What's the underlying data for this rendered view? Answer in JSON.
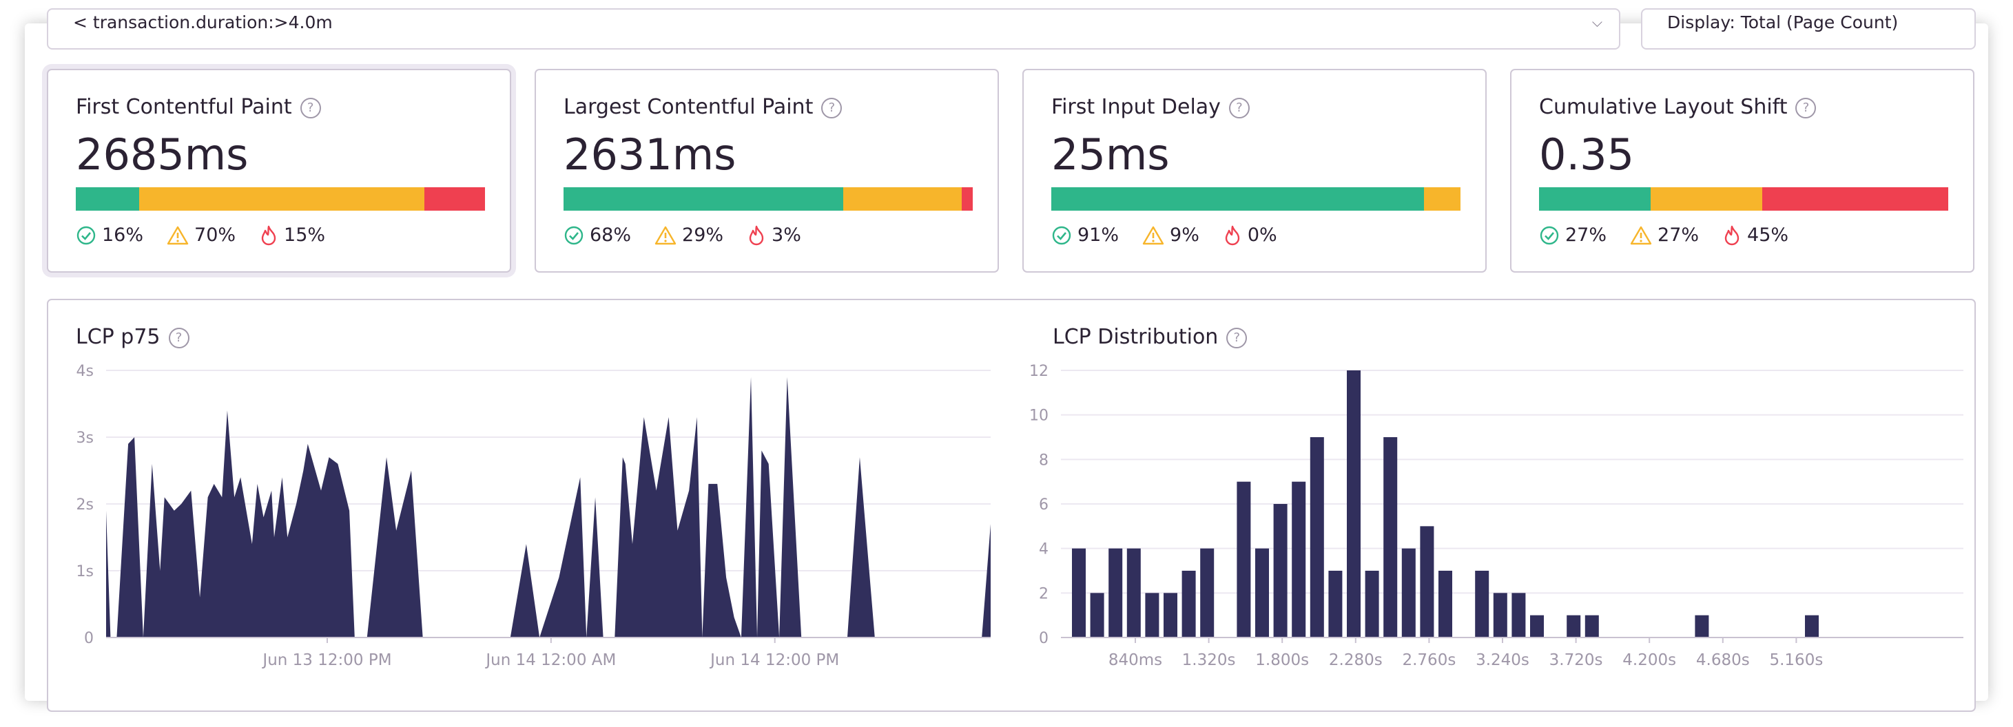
{
  "search": {
    "query": "< transaction.duration:>4.0m",
    "right_label": "Display: Total (Page Count)"
  },
  "colors": {
    "good": "#2eb68a",
    "meh": "#f7b52b",
    "poor": "#ef4050",
    "series": "#312f5c",
    "grid": "#ece8f1",
    "axis_text": "#9f97a8"
  },
  "cards": [
    {
      "title": "First Contentful Paint",
      "value": "2685ms",
      "good": "16%",
      "meh": "70%",
      "poor": "15%",
      "good_frac": 0.155,
      "meh_frac": 0.697,
      "poor_frac": 0.148,
      "selected": true
    },
    {
      "title": "Largest Contentful Paint",
      "value": "2631ms",
      "good": "68%",
      "meh": "29%",
      "poor": "3%",
      "good_frac": 0.683,
      "meh_frac": 0.29,
      "poor_frac": 0.027,
      "selected": false
    },
    {
      "title": "First Input Delay",
      "value": "25ms",
      "good": "91%",
      "meh": "9%",
      "poor": "0%",
      "good_frac": 0.91,
      "meh_frac": 0.09,
      "poor_frac": 0.0,
      "selected": false
    },
    {
      "title": "Cumulative Layout Shift",
      "value": "0.35",
      "good": "27%",
      "meh": "27%",
      "poor": "45%",
      "good_frac": 0.273,
      "meh_frac": 0.273,
      "poor_frac": 0.454,
      "selected": false
    }
  ],
  "chart_data": [
    {
      "type": "area",
      "title": "LCP p75",
      "ytick_labels": [
        "0",
        "1s",
        "2s",
        "3s",
        "4s"
      ],
      "ylim": [
        0,
        4
      ],
      "xlim": [
        0,
        1
      ],
      "xtick_labels": [
        "Jun 13 12:00 PM",
        "Jun 14 12:00 AM",
        "Jun 14 12:00 PM"
      ],
      "xtick_positions": [
        0.25,
        0.503,
        0.756
      ],
      "x": [
        0,
        0.005,
        0.012,
        0.025,
        0.032,
        0.042,
        0.052,
        0.061,
        0.066,
        0.077,
        0.085,
        0.096,
        0.106,
        0.115,
        0.122,
        0.131,
        0.137,
        0.145,
        0.152,
        0.165,
        0.171,
        0.178,
        0.187,
        0.19,
        0.199,
        0.205,
        0.215,
        0.223,
        0.228,
        0.243,
        0.252,
        0.262,
        0.275,
        0.281,
        0.295,
        0.317,
        0.328,
        0.345,
        0.358,
        0.375,
        0.393,
        0.404,
        0.425,
        0.44,
        0.457,
        0.475,
        0.49,
        0.512,
        0.536,
        0.543,
        0.553,
        0.562,
        0.575,
        0.584,
        0.587,
        0.595,
        0.608,
        0.622,
        0.636,
        0.646,
        0.659,
        0.668,
        0.674,
        0.681,
        0.691,
        0.701,
        0.71,
        0.718,
        0.729,
        0.736,
        0.741,
        0.749,
        0.761,
        0.77,
        0.786,
        0.799,
        0.813,
        0.823,
        0.838,
        0.852,
        0.869,
        0.884,
        0.902,
        0.917,
        0.933,
        0.939,
        0.946,
        0.973,
        0.99,
        1.0
      ],
      "y": [
        1.9,
        0,
        0,
        2.9,
        3.0,
        0,
        2.6,
        1.0,
        2.1,
        1.9,
        2.0,
        2.2,
        0.6,
        2.1,
        2.3,
        2.1,
        3.4,
        2.1,
        2.4,
        1.4,
        2.3,
        1.8,
        2.2,
        1.5,
        2.4,
        1.5,
        2.0,
        2.5,
        2.9,
        2.2,
        2.7,
        2.6,
        1.9,
        0,
        0,
        2.7,
        1.6,
        2.5,
        0,
        0,
        0,
        0,
        0,
        0,
        0,
        1.4,
        0,
        0.9,
        2.4,
        0,
        2.1,
        0,
        0,
        2.7,
        2.6,
        1.4,
        3.3,
        2.2,
        3.3,
        1.6,
        2.2,
        3.3,
        0,
        2.3,
        2.3,
        0.9,
        0.3,
        0,
        3.9,
        0,
        2.8,
        2.6,
        0,
        3.9,
        0,
        0,
        0,
        0,
        0,
        2.7,
        0,
        0,
        0,
        0,
        0,
        0,
        0,
        0,
        0,
        1.7
      ]
    },
    {
      "type": "bar",
      "title": "LCP Distribution",
      "ytick_labels": [
        "0",
        "2",
        "4",
        "6",
        "8",
        "10",
        "12"
      ],
      "ylim": [
        0,
        12
      ],
      "xtick_labels": [
        "840ms",
        "1.320s",
        "1.800s",
        "2.280s",
        "2.760s",
        "3.240s",
        "3.720s",
        "4.200s",
        "4.680s",
        "5.160s"
      ],
      "values": [
        4,
        2,
        4,
        4,
        2,
        2,
        3,
        4,
        0,
        7,
        4,
        6,
        7,
        9,
        3,
        12,
        3,
        9,
        4,
        5,
        3,
        0,
        3,
        2,
        2,
        1,
        0,
        1,
        1,
        0,
        0,
        0,
        0,
        0,
        1,
        0,
        0,
        0,
        0,
        0,
        1
      ]
    }
  ]
}
